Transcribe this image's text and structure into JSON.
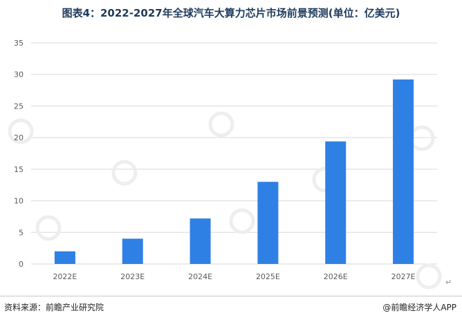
{
  "title": "图表4：2022-2027年全球汽车大算力芯片市场前景预测(单位：亿美元)",
  "source": "资料来源：前瞻产业研究院",
  "brand": "@前瞻经济学人APP",
  "return_mark": "↵",
  "watermark": "前瞻产业研究院",
  "chart_data": {
    "type": "bar",
    "title": "图表4：2022-2027年全球汽车大算力芯片市场前景预测(单位：亿美元)",
    "xlabel": "",
    "ylabel": "",
    "categories": [
      "2022E",
      "2023E",
      "2024E",
      "2025E",
      "2026E",
      "2027E"
    ],
    "values": [
      2.0,
      4.0,
      7.2,
      13.0,
      19.4,
      29.2
    ],
    "ylim": [
      0,
      35
    ],
    "yticks": [
      0,
      5,
      10,
      15,
      20,
      25,
      30,
      35
    ],
    "grid": true,
    "legend": "none",
    "bar_color": "#2f80e4",
    "grid_color": "#d9d9d9"
  }
}
